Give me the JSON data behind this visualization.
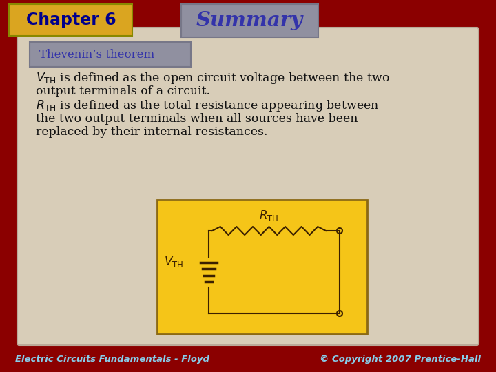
{
  "bg_color": "#8B0000",
  "slide_bg": "#D8CDB8",
  "chapter_box_color": "#DAA520",
  "chapter_text": "Chapter 6",
  "chapter_text_color": "#00008B",
  "summary_box_color": "#9090A0",
  "summary_text": "Summary",
  "summary_text_color": "#3333AA",
  "thevenin_box_color": "#9090A0",
  "thevenin_text": "Thevenin’s theorem",
  "thevenin_text_color": "#3333AA",
  "body_text_color": "#111111",
  "circuit_bg": "#F5C518",
  "circuit_line_color": "#3B2000",
  "footer_text_left": "Electric Circuits Fundamentals - Floyd",
  "footer_text_right": "© Copyright 2007 Prentice-Hall",
  "footer_text_color": "#87CEEB"
}
